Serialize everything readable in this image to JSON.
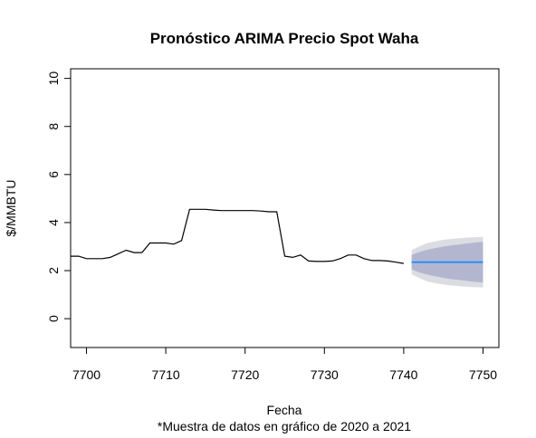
{
  "chart_data": {
    "type": "line",
    "title": "Pronóstico ARIMA Precio Spot Waha",
    "xlabel": "Fecha",
    "ylabel": "$/MMBTU",
    "note": "*Muestra de datos en gráfico de 2020 a 2021",
    "xlim": [
      7698,
      7752
    ],
    "ylim": [
      -1.2,
      10.4
    ],
    "x_ticks": [
      7700,
      7710,
      7720,
      7730,
      7740,
      7750
    ],
    "y_ticks": [
      0,
      2,
      4,
      6,
      8,
      10
    ],
    "grid": false,
    "colors": {
      "history": "#000000",
      "forecast": "#1f8fff",
      "band80": "#b3b6cf",
      "band95": "#dcdce3"
    },
    "history": {
      "x": [
        7698,
        7699,
        7700,
        7701,
        7702,
        7703,
        7704,
        7705,
        7706,
        7707,
        7708,
        7709,
        7710,
        7711,
        7712,
        7713,
        7714,
        7715,
        7716,
        7717,
        7718,
        7719,
        7720,
        7721,
        7722,
        7723,
        7724,
        7725,
        7726,
        7727,
        7728,
        7729,
        7730,
        7731,
        7732,
        7733,
        7734,
        7735,
        7736,
        7737,
        7738,
        7739,
        7740
      ],
      "y": [
        2.6,
        2.6,
        2.5,
        2.5,
        2.5,
        2.55,
        2.7,
        2.85,
        2.75,
        2.75,
        3.15,
        3.15,
        3.15,
        3.1,
        3.25,
        4.55,
        4.55,
        4.55,
        4.52,
        4.5,
        4.5,
        4.5,
        4.5,
        4.5,
        4.48,
        4.45,
        4.45,
        2.6,
        2.55,
        2.65,
        2.4,
        2.38,
        2.38,
        2.4,
        2.5,
        2.65,
        2.65,
        2.5,
        2.42,
        2.42,
        2.4,
        2.35,
        2.3
      ]
    },
    "forecast": {
      "x": [
        7741,
        7742,
        7743,
        7744,
        7745,
        7746,
        7747,
        7748,
        7749,
        7750
      ],
      "mean": [
        2.35,
        2.35,
        2.35,
        2.35,
        2.35,
        2.35,
        2.35,
        2.35,
        2.35,
        2.35
      ],
      "lo80": [
        2.05,
        1.92,
        1.83,
        1.76,
        1.7,
        1.65,
        1.61,
        1.57,
        1.53,
        1.5
      ],
      "hi80": [
        2.65,
        2.78,
        2.87,
        2.94,
        3.0,
        3.05,
        3.09,
        3.13,
        3.17,
        3.2
      ],
      "lo95": [
        1.85,
        1.68,
        1.55,
        1.48,
        1.42,
        1.38,
        1.35,
        1.33,
        1.31,
        1.3
      ],
      "hi95": [
        2.85,
        3.02,
        3.15,
        3.22,
        3.28,
        3.32,
        3.35,
        3.37,
        3.39,
        3.4
      ]
    }
  }
}
